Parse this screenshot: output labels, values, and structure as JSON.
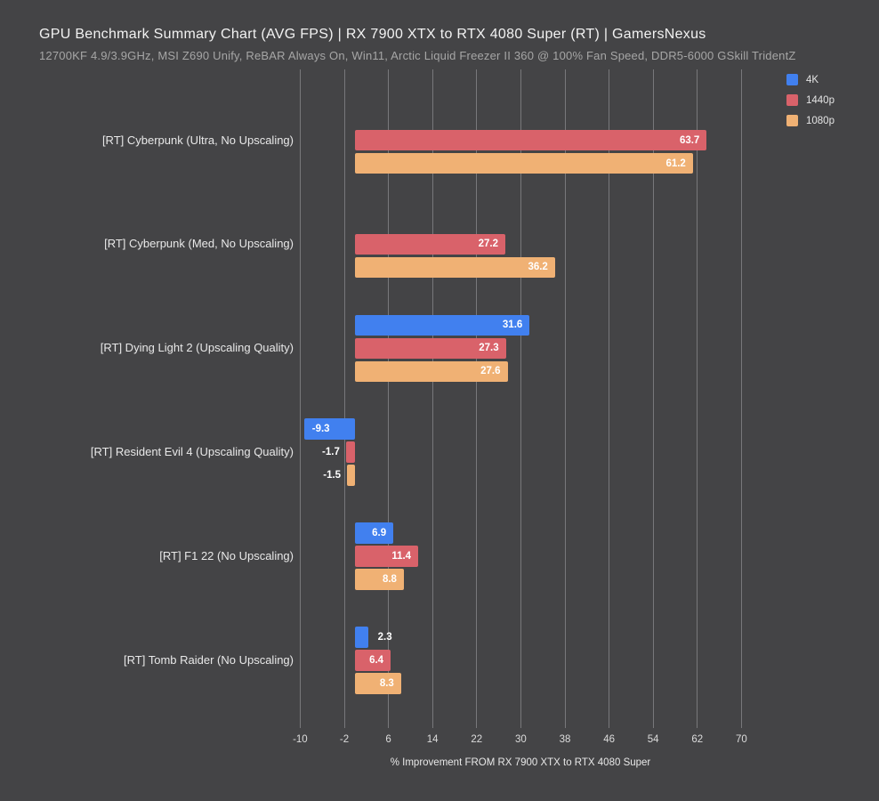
{
  "colors": {
    "background": "#444446",
    "gridline": "#8a8a8e",
    "title_text": "#f2f2f2",
    "subtitle_text": "#a6a6a6",
    "category_text": "#e8e8e8",
    "tick_text": "#dcdcdc",
    "value_text": "#ffffff",
    "series_4k": "#4180ef",
    "series_1440p": "#d9626a",
    "series_1080p": "#f0b174"
  },
  "chart_data": {
    "type": "bar",
    "orientation": "horizontal",
    "title": "GPU Benchmark Summary Chart (AVG FPS) | RX 7900 XTX to RTX 4080 Super (RT) | GamersNexus",
    "subtitle": "12700KF 4.9/3.9GHz, MSI Z690 Unify, ReBAR Always On, Win11, Arctic Liquid Freezer II 360 @ 100% Fan Speed, DDR5-6000 GSkill TridentZ",
    "xlabel": "% Improvement FROM RX 7900 XTX to RTX 4080 Super",
    "categories": [
      "[RT] Cyberpunk (Ultra, No Upscaling)",
      "[RT] Cyberpunk (Med, No Upscaling)",
      "[RT] Dying Light 2 (Upscaling Quality)",
      "[RT] Resident Evil 4 (Upscaling Quality)",
      "[RT] F1 22 (No Upscaling)",
      "[RT] Tomb Raider (No Upscaling)"
    ],
    "series": [
      {
        "name": "4K",
        "color": "#4180ef",
        "values": [
          null,
          null,
          31.6,
          -9.3,
          6.9,
          2.3
        ]
      },
      {
        "name": "1440p",
        "color": "#d9626a",
        "values": [
          63.7,
          27.2,
          27.3,
          -1.7,
          11.4,
          6.4
        ]
      },
      {
        "name": "1080p",
        "color": "#f0b174",
        "values": [
          61.2,
          36.2,
          27.6,
          -1.5,
          8.8,
          8.3
        ]
      }
    ],
    "x_ticks": [
      -10,
      -2,
      6,
      14,
      22,
      30,
      38,
      46,
      54,
      62,
      70
    ],
    "xlim": [
      -10,
      70
    ],
    "grid": "vertical",
    "legend_position": "top-right",
    "value_label_decimals": 1
  }
}
